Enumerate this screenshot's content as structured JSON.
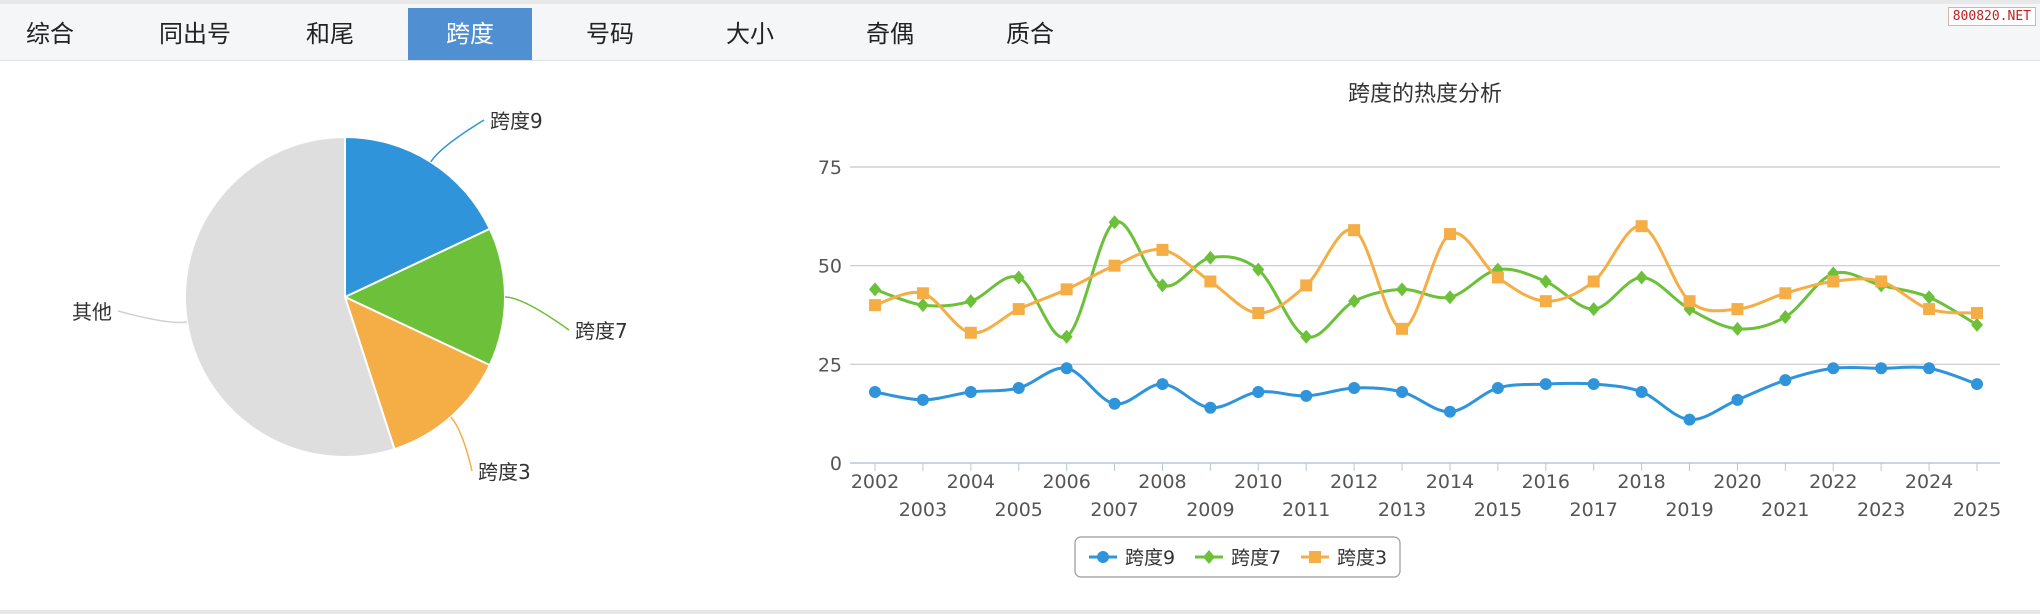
{
  "tabs": [
    {
      "label": "综合",
      "active": false
    },
    {
      "label": "同出号",
      "active": false
    },
    {
      "label": "和尾",
      "active": false
    },
    {
      "label": "跨度",
      "active": true
    },
    {
      "label": "号码",
      "active": false
    },
    {
      "label": "大小",
      "active": false
    },
    {
      "label": "奇偶",
      "active": false
    },
    {
      "label": "质合",
      "active": false
    }
  ],
  "watermark": "800820.NET",
  "colors": {
    "tab_active": "#4f8fd2",
    "s9": "#2f94d9",
    "s7": "#6cc03a",
    "s3": "#f5ad46",
    "other": "#dedede"
  },
  "chart_data": [
    {
      "type": "pie",
      "slices": [
        {
          "label": "跨度9",
          "value": 18,
          "color": "#2f94d9"
        },
        {
          "label": "跨度7",
          "value": 14,
          "color": "#6cc03a"
        },
        {
          "label": "跨度3",
          "value": 13,
          "color": "#f5ad46"
        },
        {
          "label": "其他",
          "value": 55,
          "color": "#dedede"
        }
      ]
    },
    {
      "type": "line",
      "title": "跨度的热度分析",
      "x": [
        "2002",
        "2003",
        "2004",
        "2005",
        "2006",
        "2007",
        "2008",
        "2009",
        "2010",
        "2011",
        "2012",
        "2013",
        "2014",
        "2015",
        "2016",
        "2017",
        "2018",
        "2019",
        "2020",
        "2021",
        "2022",
        "2023",
        "2024",
        "2025"
      ],
      "ylim": [
        0,
        75
      ],
      "yticks": [
        0,
        25,
        50,
        75
      ],
      "grid": true,
      "legend": "bottom",
      "series": [
        {
          "name": "跨度9",
          "color": "#2f94d9",
          "marker": "circle",
          "values": [
            18,
            16,
            18,
            19,
            24,
            15,
            20,
            14,
            18,
            17,
            19,
            18,
            13,
            19,
            20,
            20,
            18,
            11,
            16,
            21,
            24,
            24,
            24,
            20
          ]
        },
        {
          "name": "跨度7",
          "color": "#6cc03a",
          "marker": "diamond",
          "values": [
            44,
            40,
            41,
            47,
            32,
            61,
            45,
            52,
            49,
            32,
            41,
            44,
            42,
            49,
            46,
            39,
            47,
            39,
            34,
            37,
            48,
            45,
            42,
            35
          ]
        },
        {
          "name": "跨度3",
          "color": "#f5ad46",
          "marker": "square",
          "values": [
            40,
            43,
            33,
            39,
            44,
            50,
            54,
            46,
            38,
            45,
            59,
            34,
            58,
            47,
            41,
            46,
            60,
            41,
            39,
            43,
            46,
            46,
            39,
            38
          ]
        }
      ]
    }
  ]
}
